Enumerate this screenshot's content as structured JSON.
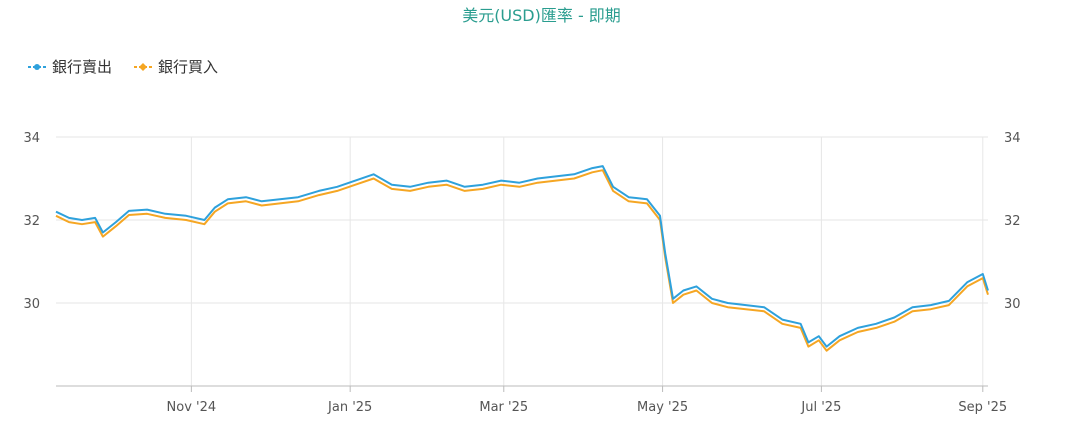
{
  "chart_data": {
    "type": "line",
    "title": "美元(USD)匯率 - 即期",
    "xlabel": "",
    "ylabel": "",
    "ylim": [
      28.0,
      34.0
    ],
    "yticks": [
      30,
      32,
      34
    ],
    "xlim": [
      "2024-09-10",
      "2025-09-03"
    ],
    "xticks": [
      {
        "date": "2024-11-01",
        "label": "Nov '24"
      },
      {
        "date": "2025-01-01",
        "label": "Jan '25"
      },
      {
        "date": "2025-03-01",
        "label": "Mar '25"
      },
      {
        "date": "2025-05-01",
        "label": "May '25"
      },
      {
        "date": "2025-07-01",
        "label": "Jul '25"
      },
      {
        "date": "2025-09-01",
        "label": "Sep '25"
      }
    ],
    "grid": true,
    "legend": "top-left",
    "series": [
      {
        "name": "銀行賣出",
        "color": "#2ea1dc",
        "points": [
          [
            "2024-09-10",
            32.2
          ],
          [
            "2024-09-15",
            32.05
          ],
          [
            "2024-09-20",
            32.0
          ],
          [
            "2024-09-25",
            32.05
          ],
          [
            "2024-09-28",
            31.7
          ],
          [
            "2024-10-03",
            31.95
          ],
          [
            "2024-10-08",
            32.22
          ],
          [
            "2024-10-15",
            32.25
          ],
          [
            "2024-10-22",
            32.15
          ],
          [
            "2024-10-30",
            32.1
          ],
          [
            "2024-11-06",
            32.0
          ],
          [
            "2024-11-10",
            32.3
          ],
          [
            "2024-11-15",
            32.5
          ],
          [
            "2024-11-22",
            32.55
          ],
          [
            "2024-11-28",
            32.45
          ],
          [
            "2024-12-05",
            32.5
          ],
          [
            "2024-12-12",
            32.55
          ],
          [
            "2024-12-20",
            32.7
          ],
          [
            "2024-12-27",
            32.8
          ],
          [
            "2025-01-03",
            32.95
          ],
          [
            "2025-01-10",
            33.1
          ],
          [
            "2025-01-17",
            32.85
          ],
          [
            "2025-01-24",
            32.8
          ],
          [
            "2025-01-31",
            32.9
          ],
          [
            "2025-02-07",
            32.95
          ],
          [
            "2025-02-14",
            32.8
          ],
          [
            "2025-02-21",
            32.85
          ],
          [
            "2025-02-28",
            32.95
          ],
          [
            "2025-03-07",
            32.9
          ],
          [
            "2025-03-14",
            33.0
          ],
          [
            "2025-03-21",
            33.05
          ],
          [
            "2025-03-28",
            33.1
          ],
          [
            "2025-04-04",
            33.25
          ],
          [
            "2025-04-08",
            33.3
          ],
          [
            "2025-04-12",
            32.8
          ],
          [
            "2025-04-18",
            32.55
          ],
          [
            "2025-04-25",
            32.5
          ],
          [
            "2025-04-30",
            32.1
          ],
          [
            "2025-05-02",
            31.2
          ],
          [
            "2025-05-05",
            30.1
          ],
          [
            "2025-05-09",
            30.3
          ],
          [
            "2025-05-14",
            30.4
          ],
          [
            "2025-05-20",
            30.1
          ],
          [
            "2025-05-26",
            30.0
          ],
          [
            "2025-06-02",
            29.95
          ],
          [
            "2025-06-09",
            29.9
          ],
          [
            "2025-06-16",
            29.6
          ],
          [
            "2025-06-23",
            29.5
          ],
          [
            "2025-06-26",
            29.05
          ],
          [
            "2025-06-30",
            29.2
          ],
          [
            "2025-07-03",
            28.95
          ],
          [
            "2025-07-08",
            29.2
          ],
          [
            "2025-07-15",
            29.4
          ],
          [
            "2025-07-22",
            29.5
          ],
          [
            "2025-07-29",
            29.65
          ],
          [
            "2025-08-05",
            29.9
          ],
          [
            "2025-08-12",
            29.95
          ],
          [
            "2025-08-19",
            30.05
          ],
          [
            "2025-08-26",
            30.5
          ],
          [
            "2025-09-01",
            30.7
          ],
          [
            "2025-09-03",
            30.3
          ]
        ]
      },
      {
        "name": "銀行買入",
        "color": "#f5a623",
        "points": [
          [
            "2024-09-10",
            32.1
          ],
          [
            "2024-09-15",
            31.95
          ],
          [
            "2024-09-20",
            31.9
          ],
          [
            "2024-09-25",
            31.95
          ],
          [
            "2024-09-28",
            31.6
          ],
          [
            "2024-10-03",
            31.85
          ],
          [
            "2024-10-08",
            32.12
          ],
          [
            "2024-10-15",
            32.15
          ],
          [
            "2024-10-22",
            32.05
          ],
          [
            "2024-10-30",
            32.0
          ],
          [
            "2024-11-06",
            31.9
          ],
          [
            "2024-11-10",
            32.2
          ],
          [
            "2024-11-15",
            32.4
          ],
          [
            "2024-11-22",
            32.45
          ],
          [
            "2024-11-28",
            32.35
          ],
          [
            "2024-12-05",
            32.4
          ],
          [
            "2024-12-12",
            32.45
          ],
          [
            "2024-12-20",
            32.6
          ],
          [
            "2024-12-27",
            32.7
          ],
          [
            "2025-01-03",
            32.85
          ],
          [
            "2025-01-10",
            33.0
          ],
          [
            "2025-01-17",
            32.75
          ],
          [
            "2025-01-24",
            32.7
          ],
          [
            "2025-01-31",
            32.8
          ],
          [
            "2025-02-07",
            32.85
          ],
          [
            "2025-02-14",
            32.7
          ],
          [
            "2025-02-21",
            32.75
          ],
          [
            "2025-02-28",
            32.85
          ],
          [
            "2025-03-07",
            32.8
          ],
          [
            "2025-03-14",
            32.9
          ],
          [
            "2025-03-21",
            32.95
          ],
          [
            "2025-03-28",
            33.0
          ],
          [
            "2025-04-04",
            33.15
          ],
          [
            "2025-04-08",
            33.2
          ],
          [
            "2025-04-12",
            32.7
          ],
          [
            "2025-04-18",
            32.45
          ],
          [
            "2025-04-25",
            32.4
          ],
          [
            "2025-04-30",
            32.0
          ],
          [
            "2025-05-02",
            31.1
          ],
          [
            "2025-05-05",
            30.0
          ],
          [
            "2025-05-09",
            30.2
          ],
          [
            "2025-05-14",
            30.3
          ],
          [
            "2025-05-20",
            30.0
          ],
          [
            "2025-05-26",
            29.9
          ],
          [
            "2025-06-02",
            29.85
          ],
          [
            "2025-06-09",
            29.8
          ],
          [
            "2025-06-16",
            29.5
          ],
          [
            "2025-06-23",
            29.4
          ],
          [
            "2025-06-26",
            28.95
          ],
          [
            "2025-06-30",
            29.1
          ],
          [
            "2025-07-03",
            28.85
          ],
          [
            "2025-07-08",
            29.1
          ],
          [
            "2025-07-15",
            29.3
          ],
          [
            "2025-07-22",
            29.4
          ],
          [
            "2025-07-29",
            29.55
          ],
          [
            "2025-08-05",
            29.8
          ],
          [
            "2025-08-12",
            29.85
          ],
          [
            "2025-08-19",
            29.95
          ],
          [
            "2025-08-26",
            30.4
          ],
          [
            "2025-09-01",
            30.6
          ],
          [
            "2025-09-03",
            30.2
          ]
        ]
      }
    ]
  }
}
